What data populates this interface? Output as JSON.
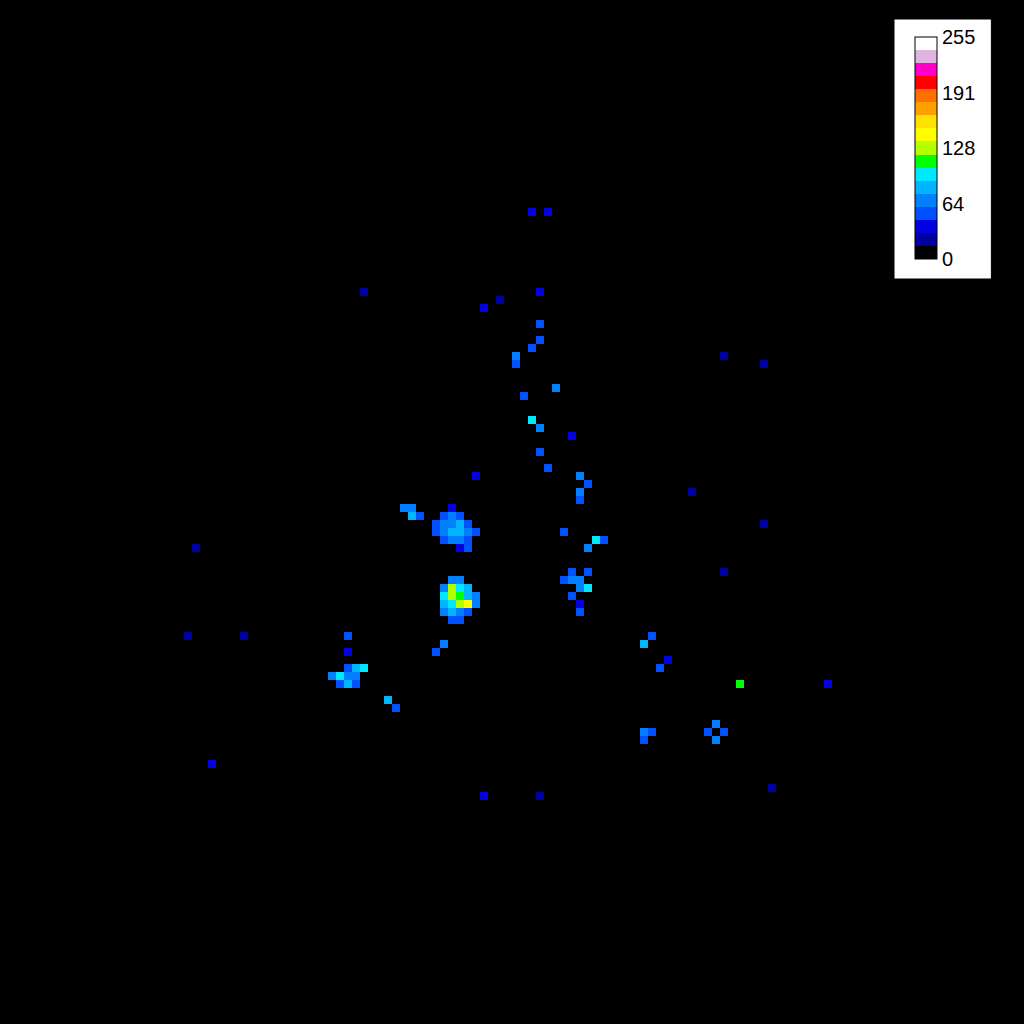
{
  "chart_data": {
    "type": "heatmap",
    "xlim": [
      0,
      128
    ],
    "ylim": [
      0,
      128
    ],
    "tick_labels": false,
    "grid": false,
    "colorbar": {
      "range": [
        0,
        255
      ],
      "ticks": [
        0,
        64,
        128,
        191,
        255
      ]
    },
    "cells": [
      [
        66,
        101,
        40
      ],
      [
        68,
        101,
        35
      ],
      [
        67,
        91,
        35
      ],
      [
        60,
        89,
        30
      ],
      [
        62,
        90,
        25
      ],
      [
        67,
        87,
        50
      ],
      [
        67,
        85,
        55
      ],
      [
        66,
        84,
        45
      ],
      [
        64,
        83,
        60
      ],
      [
        64,
        82,
        50
      ],
      [
        69,
        79,
        70
      ],
      [
        65,
        78,
        55
      ],
      [
        66,
        75,
        90
      ],
      [
        67,
        74,
        70
      ],
      [
        71,
        73,
        40
      ],
      [
        67,
        71,
        55
      ],
      [
        68,
        69,
        50
      ],
      [
        72,
        68,
        70
      ],
      [
        72,
        66,
        65
      ],
      [
        72,
        65,
        50
      ],
      [
        73,
        67,
        45
      ],
      [
        59,
        68,
        40
      ],
      [
        51,
        64,
        70
      ],
      [
        50,
        64,
        60
      ],
      [
        51,
        63,
        85
      ],
      [
        52,
        63,
        55
      ],
      [
        55,
        60,
        55
      ],
      [
        56,
        60,
        70
      ],
      [
        57,
        60,
        60
      ],
      [
        58,
        60,
        50
      ],
      [
        54,
        61,
        45
      ],
      [
        55,
        61,
        65
      ],
      [
        56,
        61,
        80
      ],
      [
        57,
        61,
        75
      ],
      [
        58,
        61,
        60
      ],
      [
        59,
        61,
        45
      ],
      [
        54,
        62,
        50
      ],
      [
        55,
        62,
        70
      ],
      [
        56,
        62,
        60
      ],
      [
        57,
        62,
        85
      ],
      [
        58,
        62,
        55
      ],
      [
        55,
        63,
        55
      ],
      [
        56,
        63,
        65
      ],
      [
        57,
        63,
        50
      ],
      [
        56,
        64,
        40
      ],
      [
        58,
        59,
        45
      ],
      [
        57,
        59,
        40
      ],
      [
        70,
        61,
        55
      ],
      [
        74,
        60,
        90
      ],
      [
        73,
        59,
        60
      ],
      [
        75,
        60,
        50
      ],
      [
        70,
        55,
        50
      ],
      [
        71,
        55,
        60
      ],
      [
        71,
        56,
        55
      ],
      [
        72,
        54,
        65
      ],
      [
        73,
        54,
        100
      ],
      [
        72,
        55,
        70
      ],
      [
        73,
        56,
        50
      ],
      [
        71,
        53,
        45
      ],
      [
        72,
        52,
        40
      ],
      [
        55,
        51,
        60
      ],
      [
        56,
        51,
        75
      ],
      [
        57,
        51,
        70
      ],
      [
        58,
        51,
        55
      ],
      [
        55,
        52,
        80
      ],
      [
        56,
        52,
        100
      ],
      [
        57,
        52,
        120
      ],
      [
        58,
        52,
        140
      ],
      [
        59,
        52,
        70
      ],
      [
        55,
        53,
        90
      ],
      [
        56,
        53,
        120
      ],
      [
        57,
        53,
        110
      ],
      [
        58,
        53,
        85
      ],
      [
        59,
        53,
        60
      ],
      [
        55,
        54,
        70
      ],
      [
        56,
        54,
        130
      ],
      [
        57,
        54,
        95
      ],
      [
        58,
        54,
        75
      ],
      [
        56,
        55,
        60
      ],
      [
        57,
        55,
        70
      ],
      [
        56,
        50,
        50
      ],
      [
        57,
        50,
        45
      ],
      [
        72,
        51,
        50
      ],
      [
        55,
        47,
        70
      ],
      [
        54,
        46,
        45
      ],
      [
        43,
        48,
        50
      ],
      [
        43,
        46,
        40
      ],
      [
        80,
        47,
        80
      ],
      [
        81,
        48,
        45
      ],
      [
        82,
        44,
        50
      ],
      [
        83,
        45,
        40
      ],
      [
        41,
        43,
        60
      ],
      [
        42,
        43,
        100
      ],
      [
        43,
        43,
        70
      ],
      [
        44,
        43,
        60
      ],
      [
        42,
        42,
        55
      ],
      [
        43,
        42,
        80
      ],
      [
        44,
        44,
        75
      ],
      [
        45,
        44,
        90
      ],
      [
        43,
        44,
        55
      ],
      [
        44,
        42,
        45
      ],
      [
        48,
        40,
        80
      ],
      [
        49,
        39,
        50
      ],
      [
        92,
        42,
        110
      ],
      [
        103,
        42,
        40
      ],
      [
        80,
        36,
        60
      ],
      [
        81,
        36,
        55
      ],
      [
        80,
        35,
        45
      ],
      [
        89,
        37,
        70
      ],
      [
        89,
        35,
        60
      ],
      [
        90,
        36,
        55
      ],
      [
        88,
        36,
        45
      ],
      [
        26,
        32,
        40
      ],
      [
        60,
        28,
        40
      ],
      [
        67,
        28,
        20
      ],
      [
        24,
        59,
        25
      ],
      [
        45,
        91,
        25
      ],
      [
        90,
        83,
        25
      ],
      [
        95,
        82,
        20
      ],
      [
        90,
        56,
        25
      ],
      [
        95,
        62,
        20
      ],
      [
        86,
        66,
        25
      ],
      [
        23,
        48,
        25
      ],
      [
        30,
        48,
        20
      ],
      [
        96,
        29,
        25
      ]
    ]
  }
}
